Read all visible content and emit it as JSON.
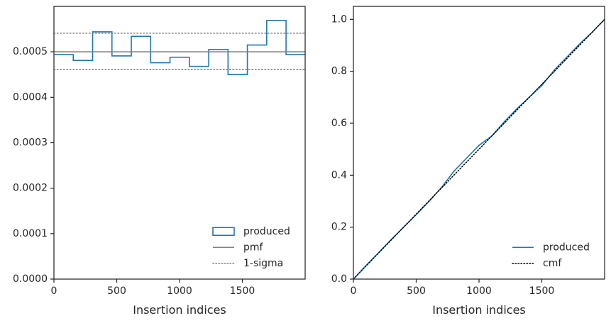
{
  "chart_data": [
    {
      "type": "line",
      "subtype": "step-histogram",
      "title": "",
      "xlabel": "Insertion indices",
      "ylabel": "",
      "xlim": [
        0,
        2000
      ],
      "ylim": [
        0,
        0.0006
      ],
      "xticks": [
        0,
        500,
        1000,
        1500
      ],
      "xtick_labels": [
        "0",
        "500",
        "1000",
        "1500"
      ],
      "yticks": [
        0,
        0.0001,
        0.0002,
        0.0003,
        0.0004,
        0.0005
      ],
      "ytick_labels": [
        "0.0000",
        "0.0001",
        "0.0002",
        "0.0003",
        "0.0004",
        "0.0005"
      ],
      "grid": false,
      "legend_position": "lower-right",
      "series": [
        {
          "name": "produced",
          "style": "step",
          "color": "#1f77b4",
          "bin_edges": [
            0,
            154,
            308,
            462,
            616,
            770,
            924,
            1078,
            1232,
            1386,
            1540,
            1694,
            1848,
            2000
          ],
          "values": [
            0.000494,
            0.000481,
            0.000544,
            0.000491,
            0.000534,
            0.000476,
            0.000488,
            0.000468,
            0.000505,
            0.00045,
            0.000515,
            0.000569,
            0.000494
          ]
        },
        {
          "name": "pmf",
          "style": "solid",
          "color": "#808080",
          "x": [
            0,
            2000
          ],
          "y": [
            0.0005,
            0.0005
          ]
        },
        {
          "name": "1-sigma",
          "style": "dotted",
          "color": "#808080",
          "bands": [
            0.000541,
            0.000461
          ]
        }
      ]
    },
    {
      "type": "line",
      "title": "",
      "xlabel": "Insertion indices",
      "ylabel": "",
      "xlim": [
        0,
        2000
      ],
      "ylim": [
        0,
        1.05
      ],
      "xticks": [
        0,
        500,
        1000,
        1500
      ],
      "xtick_labels": [
        "0",
        "500",
        "1000",
        "1500"
      ],
      "yticks": [
        0,
        0.2,
        0.4,
        0.6,
        0.8,
        1.0
      ],
      "ytick_labels": [
        "0.0",
        "0.2",
        "0.4",
        "0.6",
        "0.8",
        "1.0"
      ],
      "grid": false,
      "legend_position": "lower-right",
      "series": [
        {
          "name": "produced",
          "style": "solid",
          "color": "#1f77b4",
          "x": [
            0,
            100,
            200,
            300,
            400,
            500,
            600,
            700,
            800,
            900,
            1000,
            1100,
            1200,
            1300,
            1400,
            1500,
            1600,
            1700,
            1800,
            1900,
            2000
          ],
          "y": [
            0.0,
            0.052,
            0.101,
            0.152,
            0.2,
            0.248,
            0.298,
            0.352,
            0.415,
            0.465,
            0.515,
            0.55,
            0.605,
            0.655,
            0.7,
            0.745,
            0.805,
            0.855,
            0.905,
            0.95,
            1.0
          ]
        },
        {
          "name": "cmf",
          "style": "dotted",
          "color": "#000000",
          "x": [
            0,
            2000
          ],
          "y": [
            0,
            1
          ]
        }
      ]
    }
  ]
}
